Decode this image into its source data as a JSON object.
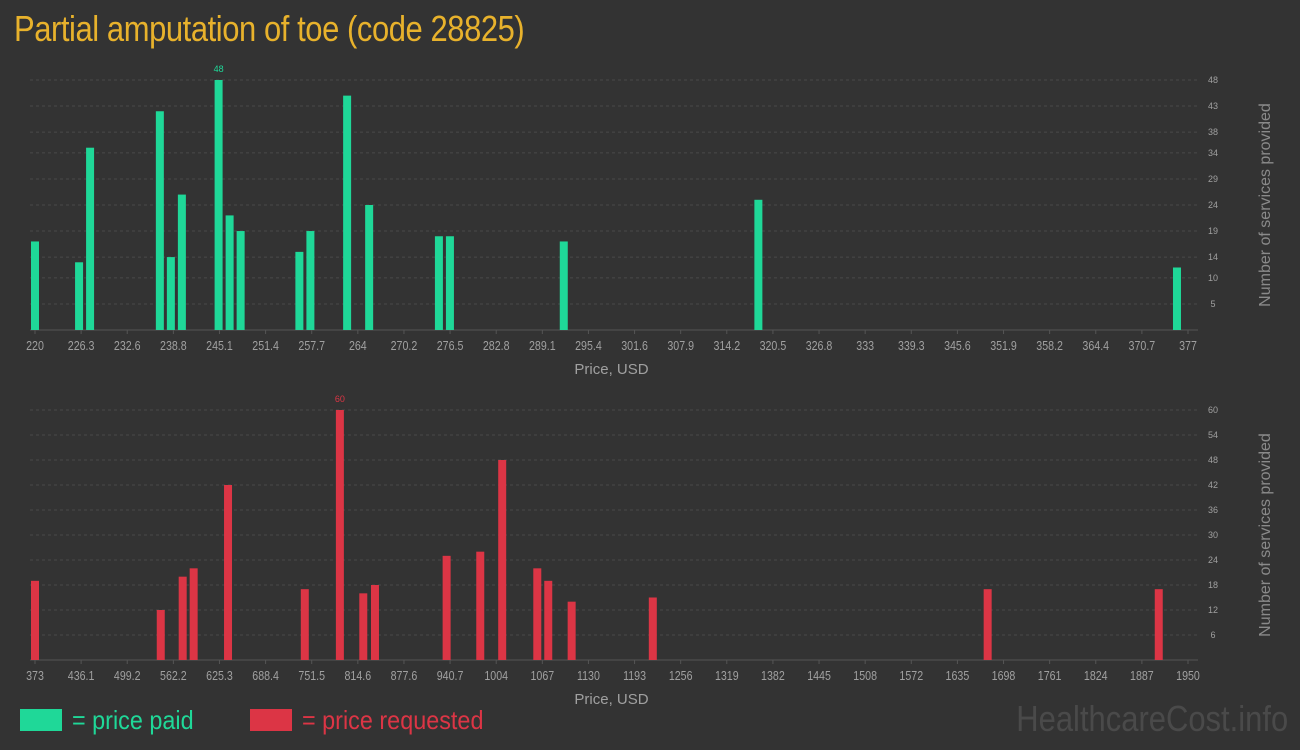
{
  "title": "Partial amputation of toe (code 28825)",
  "colors": {
    "background": "#333333",
    "title": "#e8b22c",
    "paid": "#1fd898",
    "requested": "#dc3545",
    "axis_text": "#a0a0a0",
    "grid": "#4a4a4a"
  },
  "legend": {
    "paid_label": "= price paid",
    "requested_label": "= price requested"
  },
  "watermark": "HealthcareCost.info",
  "chart_data": [
    {
      "type": "bar",
      "name": "price paid",
      "color": "#1fd898",
      "xlabel": "Price, USD",
      "ylabel": "Number of services provided",
      "xlim": [
        220,
        377
      ],
      "ylim": [
        0,
        48
      ],
      "x_ticks": [
        "220",
        "226.3",
        "232.6",
        "238.8",
        "245.1",
        "251.4",
        "257.7",
        "264",
        "270.2",
        "276.5",
        "282.8",
        "289.1",
        "295.4",
        "301.6",
        "307.9",
        "314.2",
        "320.5",
        "326.8",
        "333",
        "339.3",
        "345.6",
        "351.9",
        "358.2",
        "364.4",
        "370.7",
        "377"
      ],
      "y_ticks": [
        5,
        10,
        14,
        19,
        24,
        29,
        34,
        38,
        43,
        48
      ],
      "peak_label": "48",
      "points": [
        {
          "x": 220,
          "y": 17
        },
        {
          "x": 226,
          "y": 13
        },
        {
          "x": 227.5,
          "y": 35
        },
        {
          "x": 237,
          "y": 42
        },
        {
          "x": 238.5,
          "y": 14
        },
        {
          "x": 240,
          "y": 26
        },
        {
          "x": 245,
          "y": 48
        },
        {
          "x": 246.5,
          "y": 22
        },
        {
          "x": 248,
          "y": 19
        },
        {
          "x": 256,
          "y": 15
        },
        {
          "x": 257.5,
          "y": 19
        },
        {
          "x": 262.5,
          "y": 45
        },
        {
          "x": 265.5,
          "y": 24
        },
        {
          "x": 275,
          "y": 18
        },
        {
          "x": 276.5,
          "y": 18
        },
        {
          "x": 292,
          "y": 17
        },
        {
          "x": 318.5,
          "y": 25
        },
        {
          "x": 375.5,
          "y": 12
        }
      ]
    },
    {
      "type": "bar",
      "name": "price requested",
      "color": "#dc3545",
      "xlabel": "Price, USD",
      "ylabel": "Number of services provided",
      "xlim": [
        373,
        1950
      ],
      "ylim": [
        0,
        60
      ],
      "x_ticks": [
        "373",
        "436.1",
        "499.2",
        "562.2",
        "625.3",
        "688.4",
        "751.5",
        "814.6",
        "877.6",
        "940.7",
        "1004",
        "1067",
        "1130",
        "1193",
        "1256",
        "1319",
        "1382",
        "1445",
        "1508",
        "1572",
        "1635",
        "1698",
        "1761",
        "1824",
        "1887",
        "1950"
      ],
      "y_ticks": [
        6,
        12,
        18,
        24,
        30,
        36,
        42,
        48,
        54,
        60
      ],
      "peak_label": "60",
      "points": [
        {
          "x": 373,
          "y": 19
        },
        {
          "x": 545,
          "y": 12
        },
        {
          "x": 575,
          "y": 20
        },
        {
          "x": 590,
          "y": 22
        },
        {
          "x": 637,
          "y": 42
        },
        {
          "x": 742,
          "y": 17
        },
        {
          "x": 790,
          "y": 60
        },
        {
          "x": 822,
          "y": 16
        },
        {
          "x": 838,
          "y": 18
        },
        {
          "x": 936,
          "y": 25
        },
        {
          "x": 982,
          "y": 26
        },
        {
          "x": 1012,
          "y": 48
        },
        {
          "x": 1060,
          "y": 22
        },
        {
          "x": 1075,
          "y": 19
        },
        {
          "x": 1107,
          "y": 14
        },
        {
          "x": 1218,
          "y": 15
        },
        {
          "x": 1676,
          "y": 17
        },
        {
          "x": 1910,
          "y": 17
        }
      ]
    }
  ]
}
